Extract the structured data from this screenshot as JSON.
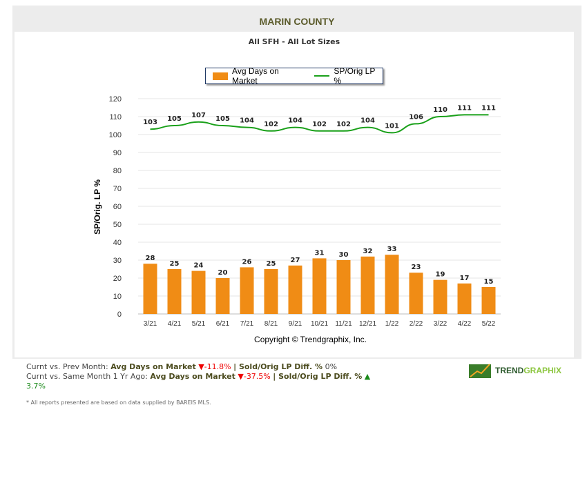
{
  "title": "MARIN COUNTY",
  "subtitle": "All SFH - All Lot Sizes",
  "copyright": "Copyright © Trendgraphix, Inc.",
  "chart_data": {
    "type": "bar+line",
    "categories": [
      "3/21",
      "4/21",
      "5/21",
      "6/21",
      "7/21",
      "8/21",
      "9/21",
      "10/21",
      "11/21",
      "12/21",
      "1/22",
      "2/22",
      "3/22",
      "4/22",
      "5/22"
    ],
    "series": [
      {
        "name": "Avg Days on Market",
        "type": "bar",
        "color": "#f08c15",
        "values": [
          28,
          25,
          24,
          20,
          26,
          25,
          27,
          31,
          30,
          32,
          33,
          23,
          19,
          17,
          15
        ]
      },
      {
        "name": "SP/Orig LP %",
        "type": "line",
        "color": "#19a019",
        "values": [
          103,
          105,
          107,
          105,
          104,
          102,
          104,
          102,
          102,
          104,
          101,
          106,
          110,
          111,
          111
        ]
      }
    ],
    "ylabel": "SP/Orig. LP %",
    "ylim": [
      0,
      120
    ],
    "yticks": [
      0,
      10,
      20,
      30,
      40,
      50,
      60,
      70,
      80,
      90,
      100,
      110,
      120
    ],
    "grid": true,
    "legend": "top"
  },
  "footer": {
    "line1_prefix": "Curnt vs. Prev Month:",
    "line2_prefix": "Curnt vs. Same Month 1 Yr Ago:",
    "metric1": "Avg Days on Market",
    "metric2": "| Sold/Orig LP Diff. %",
    "prev_dom": "-11.8%",
    "prev_sp": "0%",
    "yr_dom": "-37.5%",
    "yr_sp": "3.7%",
    "note": "* All reports presented are based on data supplied by BAREIS MLS."
  },
  "logo": {
    "text1": "TREND",
    "text2": "GRAPHIX",
    "color1": "#2d5a2d",
    "color2": "#8cc63f"
  }
}
